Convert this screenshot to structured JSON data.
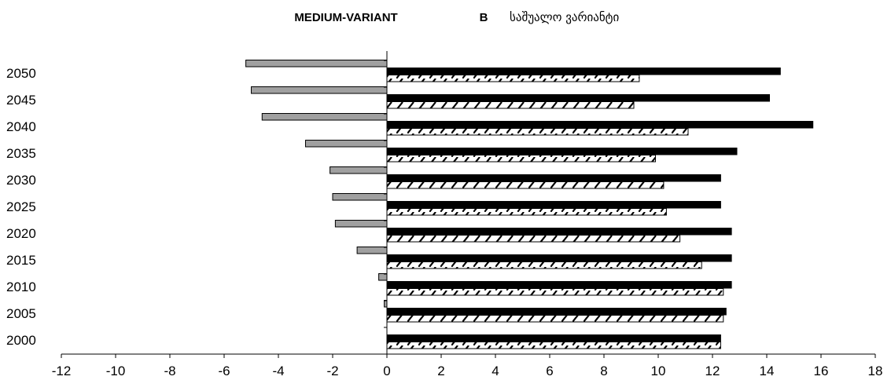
{
  "chart_data": {
    "type": "bar",
    "orientation": "horizontal",
    "title": {
      "part1": "MEDIUM-VARIANT",
      "part2": "B",
      "part3": "საშუალო ვარიანტი"
    },
    "categories": [
      "2000",
      "2005",
      "2010",
      "2015",
      "2020",
      "2025",
      "2030",
      "2035",
      "2040",
      "2045",
      "2050"
    ],
    "series": [
      {
        "style": "black",
        "values": [
          12.3,
          12.5,
          12.7,
          12.7,
          12.7,
          12.3,
          12.3,
          12.9,
          15.7,
          14.1,
          14.5
        ]
      },
      {
        "style": "hatched",
        "values": [
          12.3,
          12.4,
          12.4,
          11.6,
          10.8,
          10.3,
          10.2,
          9.9,
          11.1,
          9.1,
          9.3
        ]
      },
      {
        "style": "gray",
        "values": [
          0,
          -0.1,
          -0.3,
          -1.1,
          -1.9,
          -2.0,
          -2.1,
          -3.0,
          -4.6,
          -5.0,
          -5.2
        ]
      }
    ],
    "xlim": [
      -12,
      18
    ],
    "xticks": [
      "-12",
      "-10",
      "-8",
      "-6",
      "-4",
      "-2",
      "0",
      "2",
      "4",
      "6",
      "8",
      "10",
      "12",
      "14",
      "16",
      "18"
    ],
    "grid": false,
    "legend": "none",
    "colors": {
      "black": "#000000",
      "gray": "#a0a0a0",
      "hatch_stroke": "#000000",
      "hatch_fill": "#ffffff"
    }
  }
}
